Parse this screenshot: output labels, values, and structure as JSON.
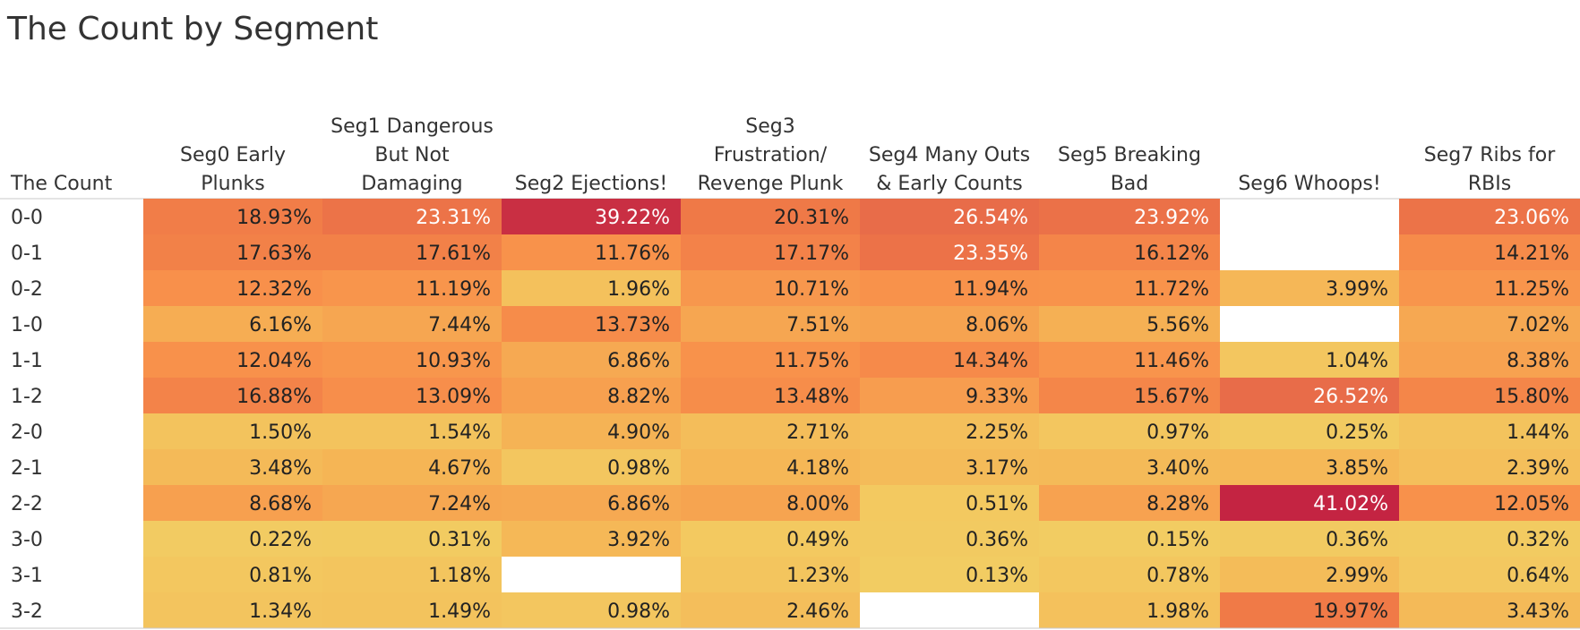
{
  "chart_data": {
    "type": "heatmap",
    "title": "The Count by Segment",
    "row_header": "The Count",
    "columns": [
      [
        "Seg0 Early",
        "Plunks"
      ],
      [
        "Seg1 Dangerous",
        "But Not",
        "Damaging"
      ],
      [
        "Seg2 Ejections!"
      ],
      [
        "Seg3",
        "Frustration/",
        "Revenge Plunk"
      ],
      [
        "Seg4 Many Outs",
        "& Early Counts"
      ],
      [
        "Seg5 Breaking",
        "Bad"
      ],
      [
        "Seg6 Whoops!"
      ],
      [
        "Seg7 Ribs for",
        "RBIs"
      ]
    ],
    "rows": [
      "0-0",
      "0-1",
      "0-2",
      "1-0",
      "1-1",
      "1-2",
      "2-0",
      "2-1",
      "2-2",
      "3-0",
      "3-1",
      "3-2"
    ],
    "values": [
      [
        18.93,
        23.31,
        39.22,
        20.31,
        26.54,
        23.92,
        null,
        23.06
      ],
      [
        17.63,
        17.61,
        11.76,
        17.17,
        23.35,
        16.12,
        null,
        14.21
      ],
      [
        12.32,
        11.19,
        1.96,
        10.71,
        11.94,
        11.72,
        3.99,
        11.25
      ],
      [
        6.16,
        7.44,
        13.73,
        7.51,
        8.06,
        5.56,
        null,
        7.02
      ],
      [
        12.04,
        10.93,
        6.86,
        11.75,
        14.34,
        11.46,
        1.04,
        8.38
      ],
      [
        16.88,
        13.09,
        8.82,
        13.48,
        9.33,
        15.67,
        26.52,
        15.8
      ],
      [
        1.5,
        1.54,
        4.9,
        2.71,
        2.25,
        0.97,
        0.25,
        1.44
      ],
      [
        3.48,
        4.67,
        0.98,
        4.18,
        3.17,
        3.4,
        3.85,
        2.39
      ],
      [
        8.68,
        7.24,
        6.86,
        8.0,
        0.51,
        8.28,
        41.02,
        12.05
      ],
      [
        0.22,
        0.31,
        3.92,
        0.49,
        0.36,
        0.15,
        0.36,
        0.32
      ],
      [
        0.81,
        1.18,
        null,
        1.23,
        0.13,
        0.78,
        2.99,
        0.64
      ],
      [
        1.34,
        1.49,
        0.98,
        2.46,
        null,
        1.98,
        19.97,
        3.43
      ]
    ],
    "value_format": "percent_2dp",
    "color_scale": [
      "#f2ce63",
      "#f5b455",
      "#f8914b",
      "#ef7847",
      "#e4644a",
      "#c42442"
    ],
    "color_domain": [
      0,
      41.02
    ]
  }
}
